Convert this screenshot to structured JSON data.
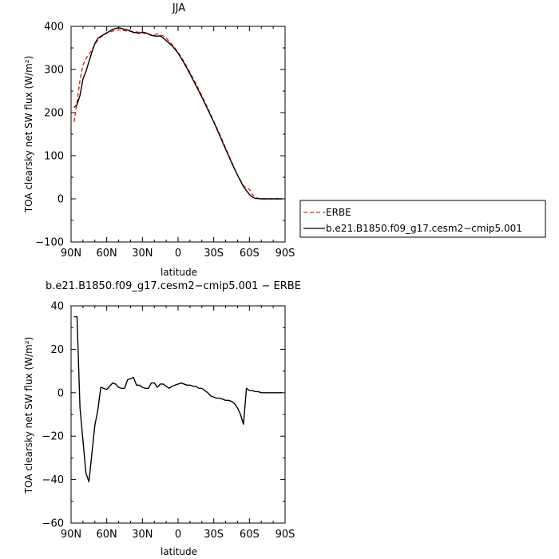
{
  "chart_data": [
    {
      "type": "line",
      "title": "JJA",
      "xlabel": "latitude",
      "ylabel": "TOA clearsky net SW flux (W/m²)",
      "xlim": [
        90,
        -90
      ],
      "ylim": [
        -100,
        400
      ],
      "x_ticks": [
        90,
        60,
        30,
        0,
        -30,
        -60,
        -90
      ],
      "x_tick_labels": [
        "90N",
        "60N",
        "30N",
        "0",
        "30S",
        "60S",
        "90S"
      ],
      "y_ticks": [
        -100,
        0,
        100,
        200,
        300,
        400
      ],
      "y_tick_labels": [
        "−100",
        "0",
        "100",
        "200",
        "300",
        "400"
      ],
      "legend_position": "right",
      "series": [
        {
          "name": "ERBE",
          "color": "#e8211f",
          "dash": "dashed",
          "x": [
            87.5,
            85,
            82.5,
            80,
            77.5,
            75,
            72.5,
            70,
            67.5,
            65,
            62.5,
            60,
            57.5,
            55,
            52.5,
            50,
            47.5,
            45,
            42.5,
            40,
            37.5,
            35,
            32.5,
            30,
            27.5,
            25,
            22.5,
            20,
            17.5,
            15,
            12.5,
            10,
            5,
            0,
            -5,
            -10,
            -15,
            -20,
            -25,
            -30,
            -35,
            -40,
            -45,
            -50,
            -55,
            -60,
            -62.5,
            -65,
            -67.5,
            -70,
            -75,
            -80,
            -85,
            -87.5
          ],
          "values": [
            178,
            225,
            275,
            310,
            325,
            335,
            345,
            358,
            368,
            375,
            380,
            384,
            387,
            389,
            391,
            392,
            391,
            390,
            389,
            388,
            388,
            387,
            386,
            385,
            383,
            381,
            380,
            381,
            382,
            380,
            378,
            373,
            358,
            340,
            318,
            293,
            267,
            239,
            210,
            180,
            150,
            118,
            86,
            55,
            30,
            22,
            10,
            3,
            1,
            0,
            0,
            0,
            0,
            0
          ]
        },
        {
          "name": "b.e21.B1850.f09_g17.cesm2−cmip5.001",
          "color": "#000000",
          "dash": "solid",
          "x": [
            87.5,
            85,
            82.5,
            80,
            77.5,
            75,
            72.5,
            70,
            67.5,
            65,
            62.5,
            60,
            57.5,
            55,
            52.5,
            50,
            47.5,
            45,
            42.5,
            40,
            37.5,
            35,
            32.5,
            30,
            27.5,
            25,
            22.5,
            20,
            17.5,
            15,
            12.5,
            10,
            5,
            0,
            -5,
            -10,
            -15,
            -20,
            -25,
            -30,
            -35,
            -40,
            -45,
            -50,
            -55,
            -60,
            -62.5,
            -65,
            -67.5,
            -70,
            -75,
            -80,
            -85,
            -87.5
          ],
          "values": [
            212,
            218,
            240,
            278,
            295,
            318,
            340,
            360,
            372,
            377,
            381,
            385,
            389,
            393,
            395,
            397,
            395,
            393,
            392,
            389,
            386,
            385,
            384,
            387,
            385,
            383,
            379,
            378,
            377,
            378,
            373,
            367,
            355,
            338,
            315,
            290,
            263,
            236,
            207,
            178,
            147,
            115,
            84,
            55,
            28,
            10,
            4,
            1,
            0.5,
            0,
            0,
            0,
            0,
            0
          ]
        }
      ]
    },
    {
      "type": "line",
      "title": "b.e21.B1850.f09_g17.cesm2−cmip5.001  −  ERBE",
      "xlabel": "latitude",
      "ylabel": "TOA clearsky net SW flux (W/m²)",
      "xlim": [
        90,
        -90
      ],
      "ylim": [
        -60,
        40
      ],
      "x_ticks": [
        90,
        60,
        30,
        0,
        -30,
        -60,
        -90
      ],
      "x_tick_labels": [
        "90N",
        "60N",
        "30N",
        "0",
        "30S",
        "60S",
        "90S"
      ],
      "y_ticks": [
        -60,
        -40,
        -20,
        0,
        20,
        40
      ],
      "y_tick_labels": [
        "−60",
        "−40",
        "−20",
        "0",
        "20",
        "40"
      ],
      "series": [
        {
          "name": "",
          "color": "#000000",
          "dash": "solid",
          "x": [
            87.5,
            85,
            82.5,
            80,
            77.5,
            75,
            72.5,
            70,
            67.5,
            65,
            62.5,
            60,
            57.5,
            55,
            52.5,
            50,
            47.5,
            45,
            42.5,
            40,
            37.5,
            35,
            32.5,
            30,
            27.5,
            25,
            22.5,
            20,
            17.5,
            15,
            12.5,
            10,
            7.5,
            5,
            2.5,
            0,
            -2.5,
            -5,
            -7.5,
            -10,
            -12.5,
            -15,
            -17.5,
            -20,
            -22.5,
            -25,
            -27.5,
            -30,
            -32.5,
            -35,
            -37.5,
            -40,
            -42.5,
            -45,
            -47.5,
            -50,
            -52.5,
            -55,
            -57.5,
            -60,
            -62.5,
            -65,
            -67.5,
            -70,
            -72.5,
            -75,
            -77.5,
            -80,
            -82.5,
            -85,
            -87.5
          ],
          "values": [
            35,
            35,
            -7,
            -22,
            -37,
            -41,
            -28,
            -15,
            -8,
            2.5,
            2,
            1.5,
            3,
            4.5,
            4,
            2.5,
            2,
            2,
            6,
            6.5,
            7,
            3.5,
            3.5,
            2.5,
            2,
            2,
            4.5,
            4.5,
            2.5,
            4,
            4,
            3,
            2,
            3,
            3.5,
            4,
            4.5,
            4,
            3.5,
            3.5,
            3,
            3,
            2,
            2,
            1,
            0,
            -1.5,
            -2,
            -2.5,
            -2.5,
            -3,
            -3.5,
            -3.5,
            -4,
            -5,
            -7,
            -10,
            -14.5,
            2,
            1,
            1,
            0.5,
            0.5,
            0,
            0,
            0,
            0,
            0,
            0,
            0,
            0
          ]
        }
      ]
    }
  ]
}
